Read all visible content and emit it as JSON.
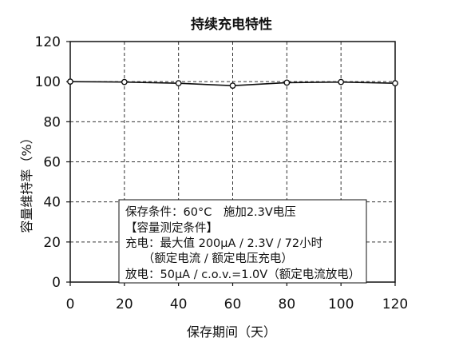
{
  "chart_data": {
    "type": "line",
    "title": "持续充电特性",
    "xlabel": "保存期间（天）",
    "ylabel": "容量维持率（%）",
    "xlim": [
      0,
      120
    ],
    "ylim": [
      0,
      120
    ],
    "xticks": [
      0,
      20,
      40,
      60,
      80,
      100,
      120
    ],
    "yticks": [
      0,
      20,
      40,
      60,
      80,
      100,
      120
    ],
    "grid": true,
    "series": [
      {
        "x": [
          0,
          20,
          40,
          60,
          80,
          100,
          120
        ],
        "y": [
          100,
          99.8,
          99.2,
          98,
          99.5,
          99.8,
          99.2
        ]
      }
    ],
    "annotation": [
      "保存条件：60°C　施加2.3V电压",
      "【容量测定条件】",
      "充电：最大值 200μA / 2.3V / 72小时",
      "　　（额定电流 / 额定电压充电）",
      "放电：50μA / c.o.v.=1.0V（额定电流放电）"
    ]
  }
}
